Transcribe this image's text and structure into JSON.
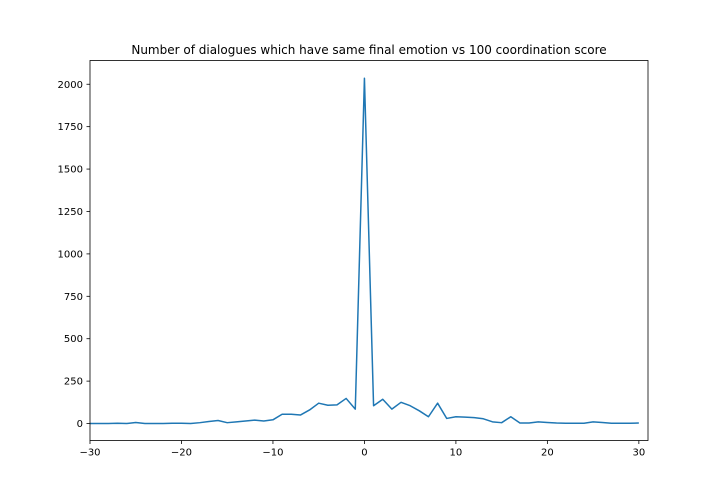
{
  "chart_data": {
    "type": "line",
    "title": "Number of dialogues which have same final emotion vs 100 coordination score",
    "xlabel": "",
    "ylabel": "",
    "xlim": [
      -30,
      31
    ],
    "ylim": [
      -100,
      2140
    ],
    "xticks": [
      -30,
      -20,
      -10,
      0,
      10,
      20,
      30
    ],
    "yticks": [
      0,
      250,
      500,
      750,
      1000,
      1250,
      1500,
      1750,
      2000
    ],
    "grid": false,
    "color": "#1f77b4",
    "series": [
      {
        "x": [
          -30,
          -29,
          -28,
          -27,
          -26,
          -25,
          -24,
          -23,
          -22,
          -21,
          -20,
          -19,
          -18,
          -17,
          -16,
          -15,
          -14,
          -13,
          -12,
          -11,
          -10,
          -9,
          -8,
          -7,
          -6,
          -5,
          -4,
          -3,
          -2,
          -1,
          0,
          1,
          2,
          3,
          4,
          5,
          6,
          7,
          8,
          9,
          10,
          11,
          12,
          13,
          14,
          15,
          16,
          17,
          18,
          19,
          20,
          21,
          22,
          23,
          24,
          25,
          26,
          27,
          28,
          29,
          30
        ],
        "values": [
          0,
          0,
          0,
          2,
          0,
          6,
          0,
          0,
          0,
          2,
          2,
          0,
          5,
          12,
          18,
          5,
          10,
          15,
          20,
          15,
          22,
          55,
          55,
          50,
          80,
          120,
          108,
          110,
          148,
          85,
          2035,
          105,
          143,
          85,
          125,
          105,
          75,
          40,
          120,
          30,
          40,
          38,
          35,
          28,
          10,
          5,
          40,
          3,
          3,
          10,
          6,
          3,
          2,
          2,
          2,
          10,
          6,
          2,
          2,
          2,
          3
        ]
      }
    ]
  }
}
